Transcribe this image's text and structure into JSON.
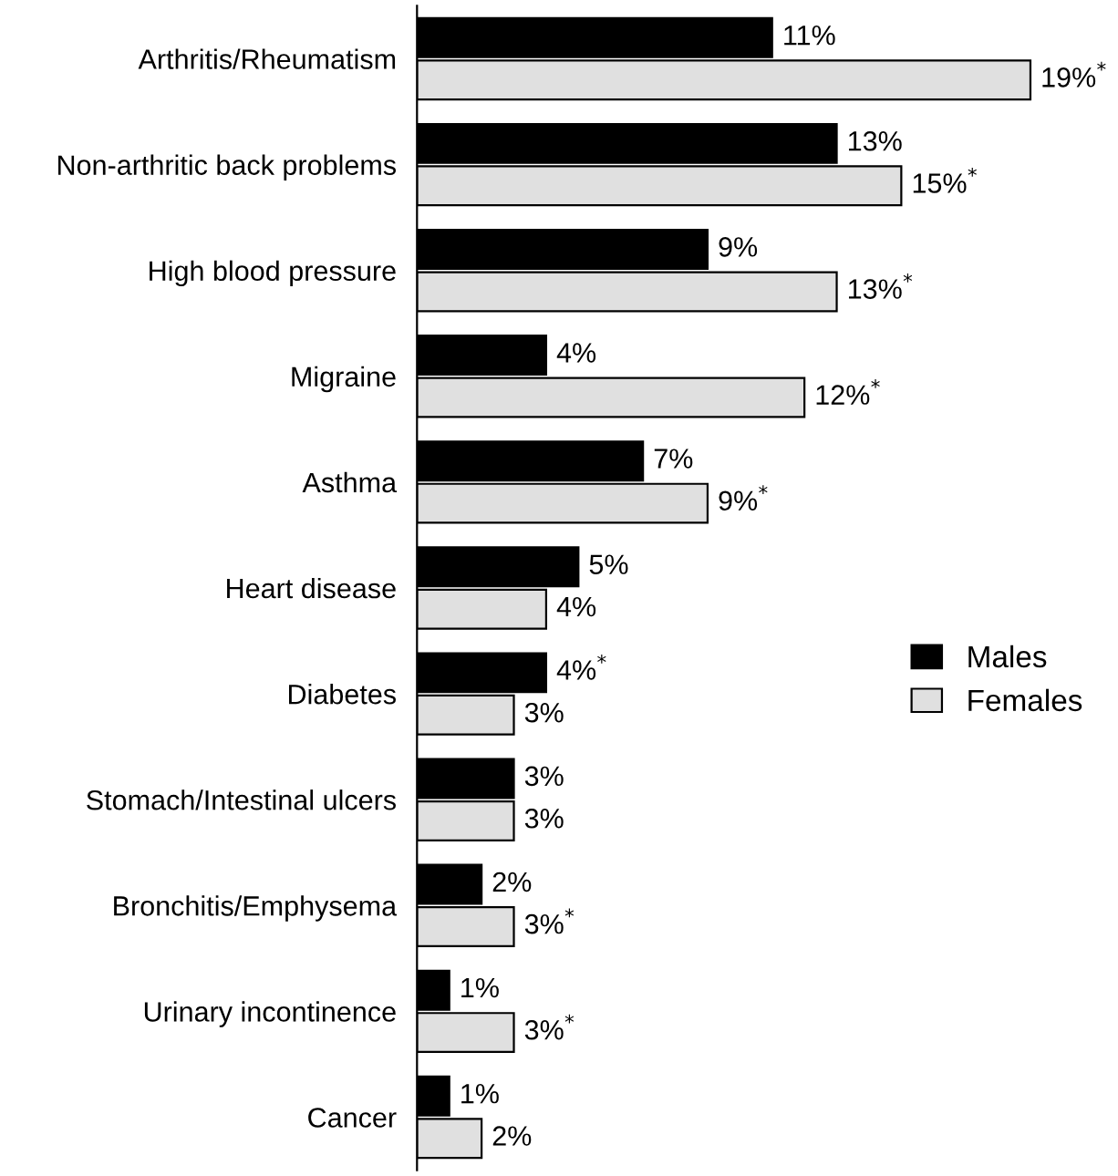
{
  "chart_data": {
    "type": "bar",
    "orientation": "horizontal",
    "legend": "center right",
    "grid": false,
    "tick_labels": "y",
    "categories": [
      "Arthritis/Rheumatism",
      "Non-arthritic back problems",
      "High blood pressure",
      "Migraine",
      "Asthma",
      "Heart disease",
      "Diabetes",
      "Stomach/Intestinal ulcers",
      "Bronchitis/Emphysema",
      "Urinary incontinence",
      "Cancer"
    ],
    "series": [
      {
        "name": "Males",
        "color": "#000000",
        "values": [
          11,
          13,
          9,
          4,
          7,
          5,
          4,
          3,
          2,
          1,
          1
        ],
        "value_labels": [
          "11%",
          "13%",
          "9%",
          "4%",
          "7%",
          "5%",
          "4%$^{*}$",
          "3%",
          "2%",
          "1%",
          "1%"
        ]
      },
      {
        "name": "Females",
        "color": "#e0e0e0",
        "values": [
          19,
          15,
          13,
          12,
          9,
          4,
          3,
          3,
          3,
          3,
          2
        ],
        "value_labels": [
          "19%$^{*}$",
          "15%$^{*}$",
          "13%$^{*}$",
          "12%$^{*}$",
          "9%$^{*}$",
          "4%",
          "3%",
          "3%",
          "3%$^{*}$",
          "3%$^{*}$",
          "2%"
        ]
      }
    ]
  }
}
